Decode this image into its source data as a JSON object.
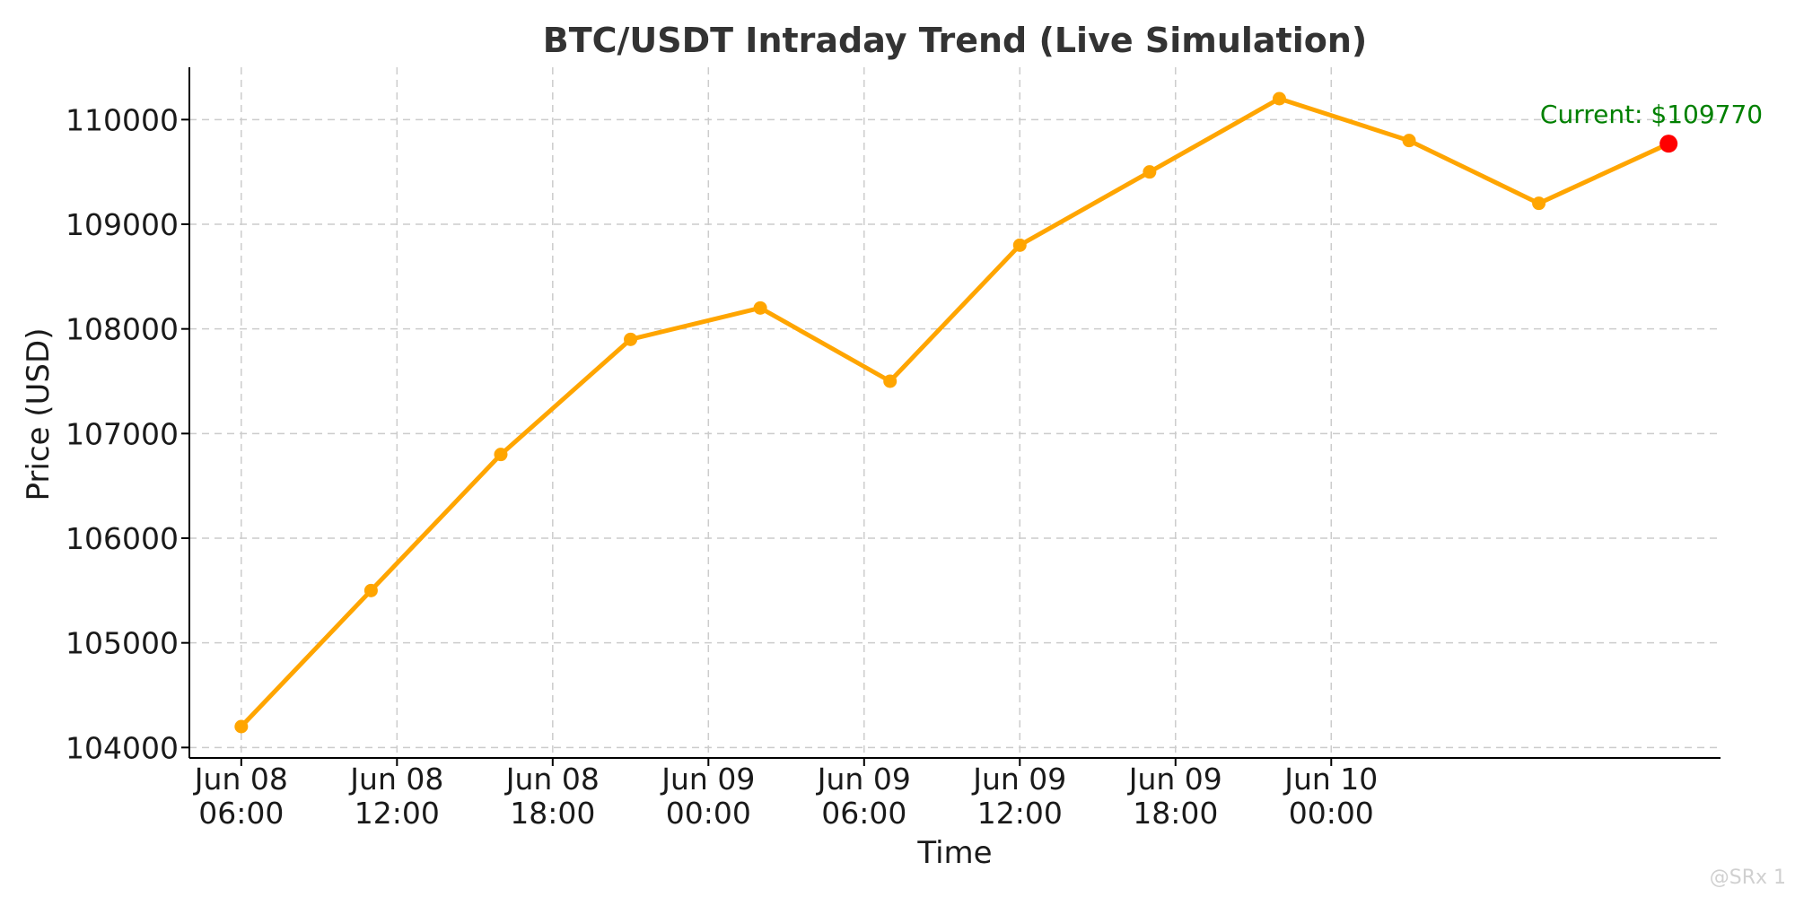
{
  "chart_data": {
    "type": "line",
    "title": "BTC/USDT Intraday Trend (Live Simulation)",
    "xlabel": "Time",
    "ylabel": "Price (USD)",
    "x": [
      "2025-06-08 06:00",
      "2025-06-08 11:00",
      "2025-06-08 16:00",
      "2025-06-08 21:00",
      "2025-06-09 02:00",
      "2025-06-09 07:00",
      "2025-06-09 12:00",
      "2025-06-09 17:00",
      "2025-06-09 22:00",
      "2025-06-10 03:00",
      "2025-06-10 08:00",
      "2025-06-10 13:00"
    ],
    "series": [
      {
        "values": [
          104200,
          105500,
          106800,
          107900,
          108200,
          107500,
          108800,
          109500,
          110200,
          109800,
          109200,
          109770
        ]
      }
    ],
    "x_ticks": [
      {
        "at": "2025-06-08 06:00",
        "line1": "Jun 08",
        "line2": "06:00"
      },
      {
        "at": "2025-06-08 12:00",
        "line1": "Jun 08",
        "line2": "12:00"
      },
      {
        "at": "2025-06-08 18:00",
        "line1": "Jun 08",
        "line2": "18:00"
      },
      {
        "at": "2025-06-09 00:00",
        "line1": "Jun 09",
        "line2": "00:00"
      },
      {
        "at": "2025-06-09 06:00",
        "line1": "Jun 09",
        "line2": "06:00"
      },
      {
        "at": "2025-06-09 12:00",
        "line1": "Jun 09",
        "line2": "12:00"
      },
      {
        "at": "2025-06-09 18:00",
        "line1": "Jun 09",
        "line2": "18:00"
      },
      {
        "at": "2025-06-10 00:00",
        "line1": "Jun 10",
        "line2": "00:00"
      }
    ],
    "y_ticks": [
      104000,
      105000,
      106000,
      107000,
      108000,
      109000,
      110000
    ],
    "ylim": [
      103900,
      110500
    ],
    "xlim": [
      "2025-06-08 04:00",
      "2025-06-10 15:00"
    ],
    "grid": true,
    "current_annotation": "Current: $109770",
    "colors": {
      "line": "#FFA500",
      "marker": "#FFA500",
      "current_marker": "#FF0000",
      "annotation": "#008000"
    }
  },
  "watermark": "@SRx 1"
}
